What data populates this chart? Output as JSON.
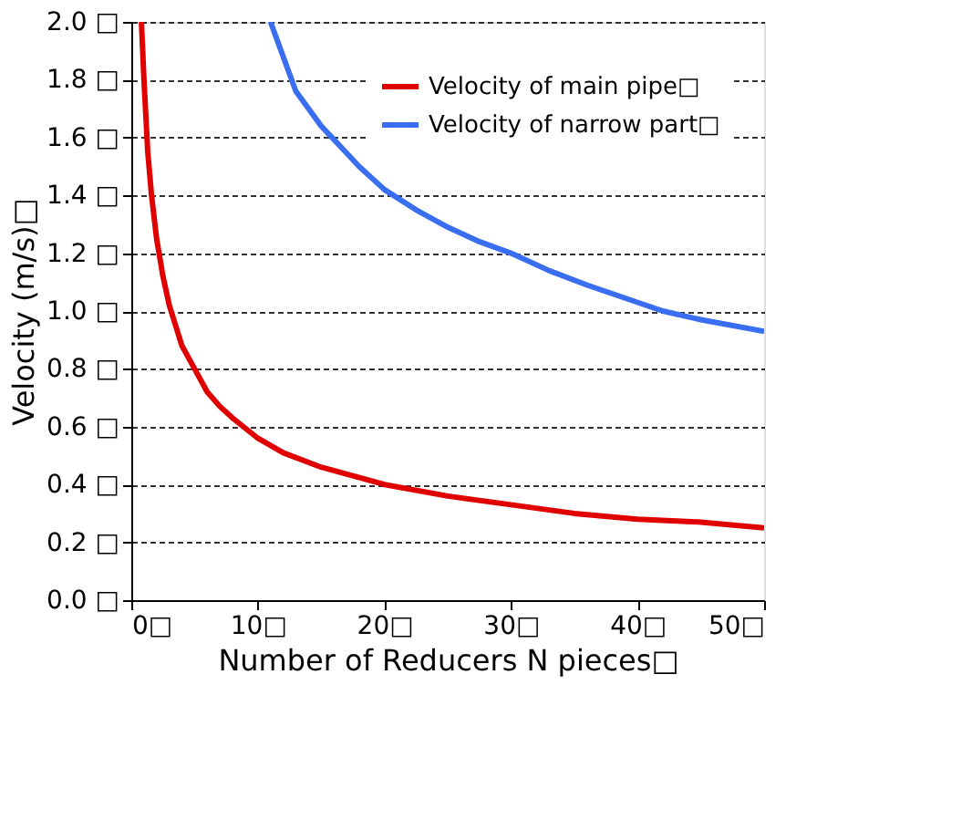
{
  "chart_data": {
    "type": "line",
    "xlabel": "Number of Reducers N pieces□",
    "ylabel": "Velocity  (m/s)□",
    "xlim": [
      0,
      50
    ],
    "ylim": [
      0,
      2.0
    ],
    "xticks": [
      {
        "value": 0,
        "label": "0□"
      },
      {
        "value": 10,
        "label": "10□"
      },
      {
        "value": 20,
        "label": "20□"
      },
      {
        "value": 30,
        "label": "30□"
      },
      {
        "value": 40,
        "label": "40□"
      },
      {
        "value": 50,
        "label": "50□"
      }
    ],
    "yticks": [
      {
        "value": 0,
        "label": "0.0 □"
      },
      {
        "value": 0.2,
        "label": "0.2 □"
      },
      {
        "value": 0.4,
        "label": "0.4 □"
      },
      {
        "value": 0.6,
        "label": "0.6 □"
      },
      {
        "value": 0.8,
        "label": "0.8 □"
      },
      {
        "value": 1.0,
        "label": "1.0 □"
      },
      {
        "value": 1.2,
        "label": "1.2 □"
      },
      {
        "value": 1.4,
        "label": "1.4 □"
      },
      {
        "value": 1.6,
        "label": "1.6 □"
      },
      {
        "value": 1.8,
        "label": "1.8 □"
      },
      {
        "value": 2.0,
        "label": "2.0 □"
      }
    ],
    "grid": "y",
    "legend": "top right",
    "marker": "none",
    "line_style": "solid",
    "series": [
      {
        "name": "Velocity of main pipe□",
        "color": "#e00000",
        "x": [
          0.8,
          1,
          1.3,
          1.6,
          2,
          2.5,
          3,
          4,
          5,
          6,
          7,
          8,
          10,
          12,
          15,
          20,
          25,
          30,
          35,
          40,
          45,
          50
        ],
        "values": [
          2.0,
          1.8,
          1.55,
          1.4,
          1.25,
          1.12,
          1.02,
          0.88,
          0.8,
          0.72,
          0.67,
          0.63,
          0.56,
          0.51,
          0.46,
          0.4,
          0.36,
          0.33,
          0.3,
          0.28,
          0.27,
          0.25
        ]
      },
      {
        "name": "Velocity of narrow part□",
        "color": "#3a6ef0",
        "x": [
          11,
          12,
          13,
          14,
          15,
          16.5,
          18,
          20,
          22.5,
          25,
          27.5,
          30,
          33,
          36,
          40,
          42,
          45,
          50
        ],
        "values": [
          2.0,
          1.88,
          1.76,
          1.7,
          1.64,
          1.57,
          1.5,
          1.42,
          1.35,
          1.29,
          1.24,
          1.2,
          1.14,
          1.09,
          1.03,
          1.0,
          0.97,
          0.93
        ]
      }
    ]
  }
}
